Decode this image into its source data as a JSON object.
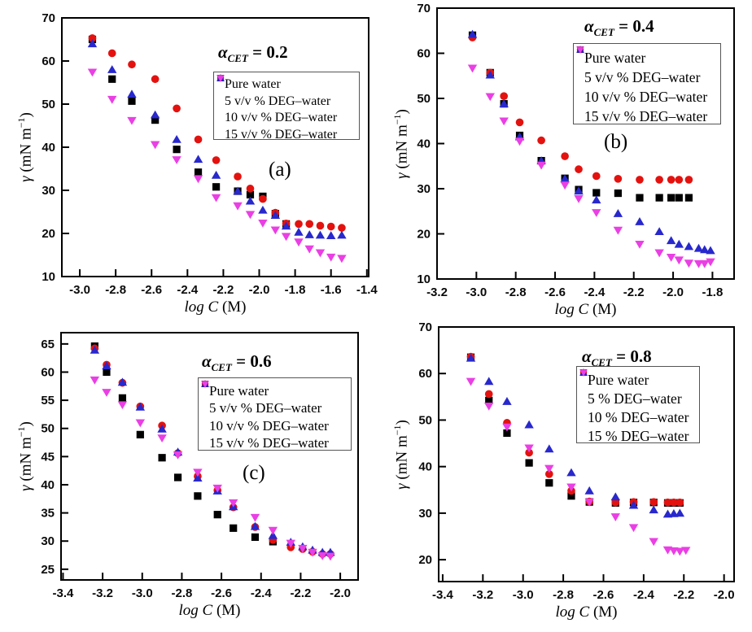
{
  "figure": {
    "background": "#ffffff",
    "xlabel": {
      "italic": "log C",
      "rest": " (M)"
    },
    "ylabel": {
      "gamma": "γ",
      "mid": " (mN m",
      "sup": "−1",
      "close": ")"
    },
    "series_colors": {
      "pure_water": "#000000",
      "deg5": "#e3120f",
      "deg10": "#2828cd",
      "deg15": "#ea3fe4"
    }
  },
  "chart_data": [
    {
      "id": "a",
      "type": "scatter",
      "panel_letter": "(a)",
      "annotation": {
        "alpha": "α",
        "sub": "CET",
        "value": " = 0.2"
      },
      "xlabel": "log C (M)",
      "ylabel": "γ (mN m⁻¹)",
      "xlim": [
        -3.1,
        -1.39
      ],
      "ylim": [
        10,
        70
      ],
      "xticks": [
        "-3.0",
        "-2.8",
        "-2.6",
        "-2.4",
        "-2.2",
        "-2.0",
        "-1.8",
        "-1.6",
        "-1.4"
      ],
      "yticks": [
        "10",
        "20",
        "30",
        "40",
        "50",
        "60",
        "70"
      ],
      "grid": false,
      "legend_position": "upper-right",
      "x": [
        -2.93,
        -2.82,
        -2.71,
        -2.58,
        -2.46,
        -2.34,
        -2.24,
        -2.12,
        -2.05,
        -1.98,
        -1.91,
        -1.85,
        -1.78,
        -1.72,
        -1.66,
        -1.6,
        -1.54
      ],
      "series": [
        {
          "name": "Pure water",
          "key": "pure_water",
          "marker": "square",
          "color": "#000000",
          "values": [
            65.0,
            55.8,
            50.7,
            46.3,
            39.5,
            34.2,
            30.8,
            29.8,
            29.0,
            28.6,
            24.6,
            22.2,
            null,
            null,
            null,
            null,
            null
          ]
        },
        {
          "name": "5 v/v % DEG–water",
          "key": "deg5",
          "marker": "circle",
          "color": "#e3120f",
          "values": [
            65.3,
            61.8,
            59.2,
            55.8,
            49.0,
            41.8,
            37.0,
            33.2,
            30.4,
            28.0,
            24.8,
            22.3,
            22.2,
            22.2,
            21.8,
            21.6,
            21.3
          ]
        },
        {
          "name": "10 v/v % DEG–water",
          "key": "deg10",
          "marker": "triangle-up",
          "color": "#2828cd",
          "values": [
            64.0,
            58.0,
            52.3,
            47.5,
            41.8,
            37.2,
            33.5,
            29.8,
            27.5,
            25.4,
            24.2,
            21.7,
            20.3,
            19.7,
            19.6,
            19.5,
            19.6
          ]
        },
        {
          "name": "15 v/v % DEG–water",
          "key": "deg15",
          "marker": "triangle-down",
          "color": "#ea3fe4",
          "values": [
            57.4,
            51.1,
            46.2,
            40.6,
            37.1,
            32.7,
            28.3,
            26.4,
            24.4,
            22.4,
            20.8,
            19.3,
            18.0,
            16.4,
            15.5,
            14.5,
            14.2
          ]
        }
      ]
    },
    {
      "id": "b",
      "type": "scatter",
      "panel_letter": "(b)",
      "annotation": {
        "alpha": "α",
        "sub": "CET",
        "value": " = 0.4"
      },
      "xlabel": "log C (M)",
      "ylabel": "γ (mN m⁻¹)",
      "xlim": [
        -3.2,
        -1.69
      ],
      "ylim": [
        10,
        70
      ],
      "xticks": [
        "-3.2",
        "-3.0",
        "-2.8",
        "-2.6",
        "-2.4",
        "-2.2",
        "-2.0",
        "-1.8"
      ],
      "yticks": [
        "10",
        "20",
        "30",
        "40",
        "50",
        "60",
        "70"
      ],
      "grid": false,
      "legend_position": "upper-right",
      "x": [
        -3.02,
        -2.93,
        -2.86,
        -2.78,
        -2.67,
        -2.55,
        -2.48,
        -2.39,
        -2.28,
        -2.17,
        -2.07,
        -2.01,
        -1.97,
        -1.92,
        -1.87,
        -1.84,
        -1.81
      ],
      "series": [
        {
          "name": "Pure water",
          "key": "pure_water",
          "marker": "square",
          "color": "#000000",
          "values": [
            64.0,
            55.7,
            48.8,
            41.8,
            36.2,
            32.3,
            29.8,
            29.1,
            29.0,
            28.0,
            28.0,
            28.0,
            28.0,
            28.0,
            null,
            null,
            null
          ]
        },
        {
          "name": "5 v/v % DEG–water",
          "key": "deg5",
          "marker": "circle",
          "color": "#e3120f",
          "values": [
            63.5,
            55.7,
            50.5,
            44.7,
            40.7,
            37.2,
            34.3,
            32.8,
            32.2,
            32.0,
            32.0,
            32.0,
            32.0,
            32.0,
            null,
            null,
            null
          ]
        },
        {
          "name": "10 v/v % DEG–water",
          "key": "deg10",
          "marker": "triangle-up",
          "color": "#2828cd",
          "values": [
            64.2,
            55.2,
            48.8,
            41.5,
            36.2,
            32.2,
            29.5,
            27.5,
            24.5,
            22.7,
            20.5,
            18.5,
            17.7,
            17.2,
            16.8,
            16.5,
            16.3
          ]
        },
        {
          "name": "15 v/v % DEG–water",
          "key": "deg15",
          "marker": "triangle-down",
          "color": "#ea3fe4",
          "values": [
            56.7,
            50.4,
            45.0,
            40.5,
            35.2,
            30.8,
            27.8,
            24.7,
            20.8,
            17.7,
            15.8,
            14.8,
            14.2,
            13.5,
            13.4,
            13.4,
            13.8
          ]
        }
      ]
    },
    {
      "id": "c",
      "type": "scatter",
      "panel_letter": "(c)",
      "annotation": {
        "alpha": "α",
        "sub": "CET",
        "value": " = 0.6"
      },
      "xlabel": "log C (M)",
      "ylabel": "γ (mN m⁻¹)",
      "xlim": [
        -3.41,
        -1.91
      ],
      "ylim": [
        23.1,
        67.0
      ],
      "xticks": [
        "-3.4",
        "-3.2",
        "-3.0",
        "-2.8",
        "-2.6",
        "-2.4",
        "-2.2",
        "-2.0"
      ],
      "yticks": [
        "25",
        "30",
        "35",
        "40",
        "45",
        "50",
        "55",
        "60",
        "65"
      ],
      "grid": false,
      "legend_position": "upper-right",
      "x": [
        -3.24,
        -3.18,
        -3.1,
        -3.01,
        -2.9,
        -2.82,
        -2.72,
        -2.62,
        -2.54,
        -2.43,
        -2.34,
        -2.25,
        -2.19,
        -2.14,
        -2.09,
        -2.05
      ],
      "series": [
        {
          "name": "Pure water",
          "key": "pure_water",
          "marker": "square",
          "color": "#000000",
          "values": [
            64.6,
            60.0,
            55.4,
            48.9,
            44.8,
            41.3,
            38.0,
            34.7,
            32.3,
            30.7,
            29.9,
            null,
            null,
            null,
            null,
            null
          ]
        },
        {
          "name": "5 v/v % DEG–water",
          "key": "deg5",
          "marker": "circle",
          "color": "#e3120f",
          "values": [
            64.2,
            61.3,
            58.1,
            53.9,
            50.5,
            45.6,
            41.5,
            39.0,
            36.0,
            32.5,
            30.2,
            28.9,
            28.6,
            28.1,
            27.7,
            27.7
          ]
        },
        {
          "name": "10 v/v % DEG–water",
          "key": "deg10",
          "marker": "triangle-up",
          "color": "#2828cd",
          "values": [
            63.9,
            61.1,
            58.2,
            53.8,
            49.9,
            45.8,
            41.2,
            38.9,
            36.1,
            32.6,
            31.0,
            29.8,
            29.0,
            28.4,
            28.0,
            28.0
          ]
        },
        {
          "name": "15 v/v % DEG–water",
          "key": "deg15",
          "marker": "triangle-down",
          "color": "#ea3fe4",
          "values": [
            58.6,
            56.4,
            54.2,
            51.0,
            48.3,
            45.3,
            42.2,
            39.4,
            36.8,
            34.2,
            31.9,
            29.6,
            28.7,
            28.0,
            27.4,
            27.3
          ]
        }
      ]
    },
    {
      "id": "d",
      "type": "scatter",
      "panel_letter": null,
      "annotation": {
        "alpha": "α",
        "sub": "CET",
        "value": " = 0.8"
      },
      "xlabel": "log C (M)",
      "ylabel": "γ (mN m⁻¹)",
      "xlim": [
        -3.42,
        -1.95
      ],
      "ylim": [
        15.3,
        70
      ],
      "xticks": [
        "-3.4",
        "-3.2",
        "-3.0",
        "-2.8",
        "-2.6",
        "-2.4",
        "-2.2",
        "-2.0"
      ],
      "yticks": [
        "20",
        "30",
        "40",
        "50",
        "60",
        "70"
      ],
      "grid": false,
      "legend_position": "upper-right",
      "x": [
        -3.26,
        -3.17,
        -3.08,
        -2.97,
        -2.87,
        -2.76,
        -2.67,
        -2.54,
        -2.45,
        -2.35,
        -2.28,
        -2.25,
        -2.22,
        -2.19
      ],
      "series": [
        {
          "name": "Pure water",
          "key": "pure_water",
          "marker": "square",
          "color": "#000000",
          "values": [
            63.5,
            54.2,
            47.2,
            40.8,
            36.5,
            33.7,
            32.4,
            32.2,
            32.3,
            32.3,
            32.2,
            32.2,
            32.2,
            null
          ]
        },
        {
          "name": "5 % DEG–water",
          "key": "deg5",
          "marker": "circle",
          "color": "#e3120f",
          "values": [
            63.6,
            55.6,
            49.4,
            43.0,
            38.4,
            34.8,
            32.5,
            32.3,
            32.4,
            32.4,
            32.3,
            32.3,
            32.3,
            null
          ]
        },
        {
          "name": "10 % DEG–water",
          "key": "deg10",
          "marker": "triangle-up",
          "color": "#2828cd",
          "values": [
            63.3,
            58.3,
            54.0,
            49.0,
            43.8,
            38.7,
            34.8,
            33.5,
            31.7,
            30.7,
            29.8,
            29.9,
            30.0,
            null
          ]
        },
        {
          "name": "15 % DEG–water",
          "key": "deg15",
          "marker": "triangle-down",
          "color": "#ea3fe4",
          "values": [
            58.3,
            53.0,
            48.5,
            44.0,
            39.6,
            35.6,
            32.4,
            29.2,
            26.9,
            23.9,
            22.1,
            21.9,
            21.8,
            22.0
          ]
        }
      ]
    }
  ]
}
